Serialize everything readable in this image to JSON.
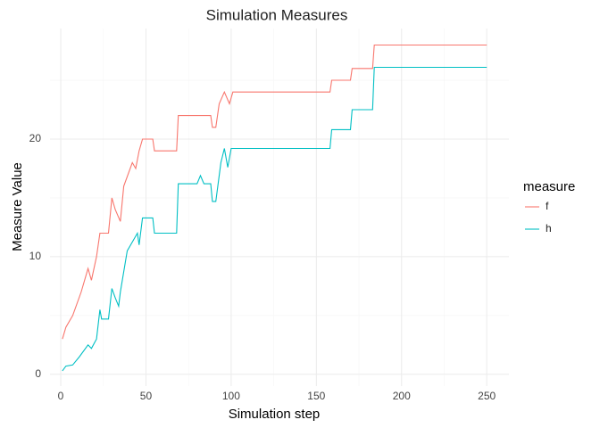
{
  "chart_data": {
    "type": "line",
    "title": "Simulation Measures",
    "x_label": "Simulation step",
    "y_label": "Measure Value",
    "legend_title": "measure",
    "legend_position": "right",
    "grid": true,
    "xlim": [
      -6.3,
      263
    ],
    "ylim": [
      -1,
      29.4
    ],
    "xticks": [
      0,
      50,
      100,
      150,
      200,
      250
    ],
    "yticks": [
      0,
      10,
      20
    ],
    "minor_xticks": [
      25,
      75,
      125,
      175,
      225
    ],
    "minor_yticks": [
      5,
      15,
      25
    ],
    "series": [
      {
        "name": "f",
        "color": "#F8766D",
        "x": [
          1,
          3,
          7,
          12,
          16,
          18,
          21,
          23,
          28,
          30,
          32,
          35,
          37,
          42,
          44,
          46,
          48,
          54,
          55,
          68,
          69,
          88,
          89,
          91,
          93,
          96,
          99,
          101,
          158,
          159,
          170,
          171,
          183,
          184,
          250
        ],
        "values": [
          3,
          4,
          5,
          7,
          9,
          8,
          10,
          12,
          12,
          15,
          14,
          13,
          16,
          18,
          17.5,
          19,
          20,
          20,
          19,
          19,
          22,
          22,
          21,
          21,
          23,
          24,
          23,
          24,
          24,
          25,
          25,
          26,
          26,
          28,
          28
        ]
      },
      {
        "name": "h",
        "color": "#00BFC4",
        "x": [
          1,
          3,
          7,
          11,
          16,
          18,
          21,
          23,
          24,
          28,
          30,
          32,
          34,
          35,
          39,
          43,
          45,
          46,
          48,
          54,
          55,
          68,
          69,
          80,
          82,
          84,
          88,
          89,
          91,
          94,
          96,
          98,
          100,
          158,
          159,
          170,
          171,
          183,
          184,
          250
        ],
        "values": [
          0.3,
          0.7,
          0.8,
          1.5,
          2.5,
          2.2,
          3,
          5.5,
          4.7,
          4.7,
          7.3,
          6.5,
          5.8,
          7,
          10.5,
          11.5,
          12,
          11,
          13.3,
          13.3,
          12,
          12,
          16.2,
          16.2,
          16.9,
          16.2,
          16.2,
          14.7,
          14.7,
          18,
          19.2,
          17.6,
          19.2,
          19.2,
          20.8,
          20.8,
          22.5,
          22.5,
          26.1,
          26.1
        ]
      }
    ]
  }
}
